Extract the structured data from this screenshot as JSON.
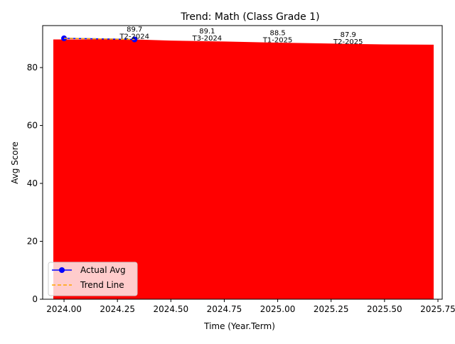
{
  "chart_data": {
    "type": "line",
    "title": "Trend: Math (Class Grade 1)",
    "xlabel": "Time (Year.Term)",
    "ylabel": "Avg Score",
    "xlim": [
      2023.9,
      2025.77
    ],
    "ylim": [
      0,
      94.5
    ],
    "x_ticks": [
      2024.0,
      2024.25,
      2024.5,
      2024.75,
      2025.0,
      2025.25,
      2025.5,
      2025.75
    ],
    "x_tick_labels": [
      "2024.00",
      "2024.25",
      "2024.50",
      "2024.75",
      "2025.00",
      "2025.25",
      "2025.50",
      "2025.75"
    ],
    "y_ticks": [
      0,
      20,
      40,
      60,
      80
    ],
    "y_tick_labels": [
      "0",
      "20",
      "40",
      "60",
      "80"
    ],
    "grid": false,
    "legend_position": "lower-left",
    "fill": {
      "color": "#ff0000",
      "points": [
        {
          "x": 2023.95,
          "y": 89.7
        },
        {
          "x": 2024.33,
          "y": 89.7
        },
        {
          "x": 2024.5,
          "y": 89.3
        },
        {
          "x": 2024.75,
          "y": 89.0
        },
        {
          "x": 2025.0,
          "y": 88.6
        },
        {
          "x": 2025.25,
          "y": 88.3
        },
        {
          "x": 2025.5,
          "y": 88.0
        },
        {
          "x": 2025.73,
          "y": 87.9
        }
      ]
    },
    "series": [
      {
        "name": "Actual Avg",
        "color": "#0000ff",
        "style": "solid",
        "marker": "circle",
        "x": [
          2024.0,
          2024.33
        ],
        "y": [
          90.1,
          89.7
        ]
      },
      {
        "name": "Trend Line",
        "color": "#ffa500",
        "style": "dashed",
        "marker": "none",
        "x": [
          2024.0,
          2024.33
        ],
        "y": [
          90.1,
          89.7
        ]
      }
    ],
    "annotations": [
      {
        "value": "89.7",
        "term": "T2-2024",
        "x": 2024.33,
        "y": 89.7
      },
      {
        "value": "89.1",
        "term": "T3-2024",
        "x": 2024.67,
        "y": 89.1
      },
      {
        "value": "88.5",
        "term": "T1-2025",
        "x": 2025.0,
        "y": 88.5
      },
      {
        "value": "87.9",
        "term": "T2-2025",
        "x": 2025.33,
        "y": 87.9
      }
    ]
  }
}
